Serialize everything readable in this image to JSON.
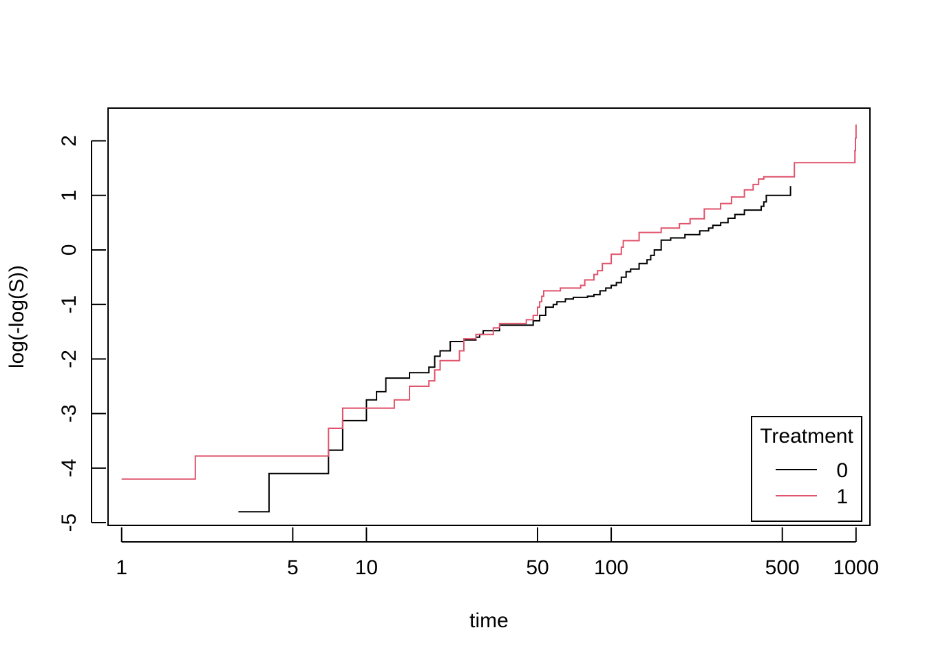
{
  "chart_data": {
    "type": "line",
    "xlabel": "time",
    "ylabel": "log(-log(S))",
    "x_scale": "log",
    "xlim": [
      0.88,
      1140
    ],
    "ylim": [
      -5.05,
      2.6
    ],
    "x_ticks": [
      1,
      5,
      10,
      50,
      100,
      500,
      1000
    ],
    "x_tick_labels": [
      "1",
      "5",
      "10",
      "50",
      "100",
      "500",
      "1000"
    ],
    "y_ticks": [
      -5,
      -4,
      -3,
      -2,
      -1,
      0,
      1,
      2
    ],
    "y_tick_labels": [
      "-5",
      "-4",
      "-3",
      "-2",
      "-1",
      "0",
      "1",
      "2"
    ],
    "grid": false,
    "step": true,
    "legend": {
      "title": "Treatment",
      "position": "bottom-right",
      "entries": [
        "0",
        "1"
      ]
    },
    "series": [
      {
        "name": "0",
        "color": "#000000",
        "x": [
          3,
          4,
          7,
          8,
          10,
          11,
          12,
          15,
          18,
          19,
          20,
          22,
          25,
          28,
          29,
          30,
          35,
          48,
          51,
          54,
          58,
          60,
          65,
          70,
          80,
          85,
          90,
          95,
          100,
          105,
          110,
          115,
          120,
          130,
          140,
          145,
          150,
          160,
          175,
          200,
          230,
          250,
          260,
          280,
          300,
          320,
          350,
          410,
          420,
          430,
          540
        ],
        "y": [
          -4.8,
          -4.1,
          -3.67,
          -3.13,
          -2.75,
          -2.6,
          -2.35,
          -2.25,
          -2.15,
          -1.95,
          -1.85,
          -1.68,
          -1.65,
          -1.6,
          -1.55,
          -1.48,
          -1.38,
          -1.3,
          -1.2,
          -1.05,
          -1.0,
          -0.95,
          -0.9,
          -0.87,
          -0.85,
          -0.82,
          -0.75,
          -0.7,
          -0.65,
          -0.6,
          -0.5,
          -0.4,
          -0.35,
          -0.25,
          -0.18,
          -0.1,
          0.0,
          0.18,
          0.22,
          0.28,
          0.35,
          0.4,
          0.45,
          0.5,
          0.58,
          0.65,
          0.73,
          0.8,
          0.88,
          1.0,
          1.17
        ]
      },
      {
        "name": "1",
        "color": "#DF536B",
        "x": [
          1,
          2,
          7,
          8,
          13,
          15,
          18,
          19,
          20,
          24,
          25,
          28,
          33,
          35,
          45,
          48,
          50,
          51,
          52,
          53,
          62,
          75,
          78,
          85,
          88,
          92,
          100,
          110,
          112,
          130,
          160,
          190,
          210,
          240,
          280,
          310,
          350,
          380,
          400,
          420,
          560,
          990,
          995,
          1000
        ],
        "y": [
          -4.2,
          -3.78,
          -3.27,
          -2.9,
          -2.75,
          -2.5,
          -2.4,
          -2.2,
          -2.03,
          -1.85,
          -1.63,
          -1.55,
          -1.43,
          -1.35,
          -1.28,
          -1.2,
          -1.05,
          -0.95,
          -0.85,
          -0.75,
          -0.7,
          -0.65,
          -0.55,
          -0.45,
          -0.38,
          -0.25,
          -0.08,
          0.05,
          0.17,
          0.32,
          0.4,
          0.48,
          0.57,
          0.75,
          0.85,
          0.97,
          1.1,
          1.2,
          1.3,
          1.34,
          1.6,
          1.82,
          2.05,
          2.3
        ]
      }
    ]
  }
}
